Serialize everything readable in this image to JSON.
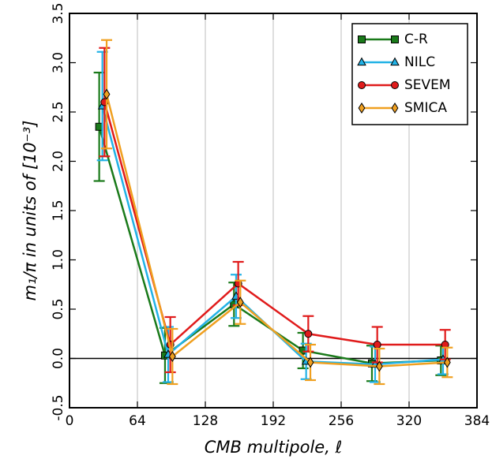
{
  "chart_data": {
    "type": "line",
    "title": "",
    "xlabel": "CMB multipole, ℓ",
    "ylabel": "m₁/π in units of [10⁻³]",
    "xlim": [
      0,
      384
    ],
    "ylim": [
      -0.5,
      3.5
    ],
    "x_ticks": [
      0,
      64,
      128,
      192,
      256,
      320,
      384
    ],
    "y_ticks": [
      -0.5,
      0.0,
      0.5,
      1.0,
      1.5,
      2.0,
      2.5,
      3.0,
      3.5
    ],
    "x_grid": true,
    "y_grid": false,
    "zero_line": true,
    "legend_position": "top-right",
    "series": [
      {
        "name": "C-R",
        "color": "#1a7a1a",
        "marker": "square",
        "x": [
          28,
          90,
          155,
          220,
          285,
          350
        ],
        "y": [
          2.35,
          0.03,
          0.55,
          0.08,
          -0.05,
          -0.02
        ],
        "err": [
          0.55,
          0.28,
          0.22,
          0.18,
          0.18,
          0.15
        ]
      },
      {
        "name": "NILC",
        "color": "#22b2e6",
        "marker": "triangle",
        "x": [
          31,
          93,
          157,
          223,
          288,
          352
        ],
        "y": [
          2.56,
          0.04,
          0.63,
          -0.03,
          -0.06,
          -0.01
        ],
        "err": [
          0.55,
          0.28,
          0.22,
          0.18,
          0.18,
          0.15
        ]
      },
      {
        "name": "SEVEM",
        "color": "#e01b1b",
        "marker": "circle",
        "x": [
          33,
          95,
          159,
          225,
          290,
          354
        ],
        "y": [
          2.6,
          0.14,
          0.76,
          0.25,
          0.14,
          0.14
        ],
        "err": [
          0.55,
          0.28,
          0.22,
          0.18,
          0.18,
          0.15
        ]
      },
      {
        "name": "SMICA",
        "color": "#f0a020",
        "marker": "diamond",
        "x": [
          35,
          97,
          161,
          227,
          292,
          356
        ],
        "y": [
          2.68,
          0.02,
          0.57,
          -0.04,
          -0.08,
          -0.04
        ],
        "err": [
          0.55,
          0.28,
          0.22,
          0.18,
          0.18,
          0.15
        ]
      }
    ]
  }
}
